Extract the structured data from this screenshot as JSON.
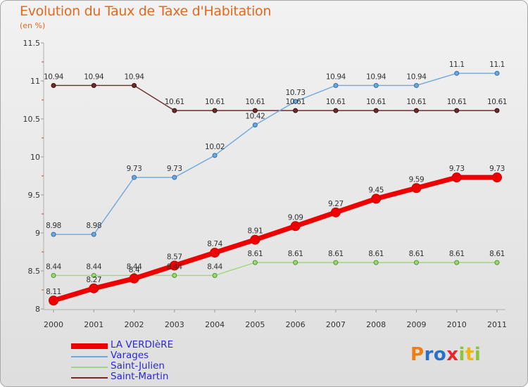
{
  "header": {
    "title": "Evolution du Taux de Taxe d'Habitation",
    "unit": "(en %)"
  },
  "logo": {
    "text": "Proxiti",
    "letter_colors": [
      "#f07d14",
      "#2a6fc8",
      "#2a6fc8",
      "#e8272c",
      "#8cc43c",
      "#f0b414",
      "#8cc43c"
    ]
  },
  "chart_data": {
    "type": "line",
    "x": [
      2000,
      2001,
      2002,
      2003,
      2004,
      2005,
      2006,
      2007,
      2008,
      2009,
      2010,
      2011
    ],
    "ylim": [
      8,
      11.5
    ],
    "yticks": [
      8,
      8.5,
      9,
      9.5,
      10,
      10.5,
      11,
      11.5
    ],
    "ytick_labels": [
      "8",
      "8.5",
      "9",
      "9.5",
      "10",
      "10.5",
      "11",
      "11.5"
    ],
    "grid": false,
    "legend_position": "bottom-left",
    "series": [
      {
        "name": "LA VERDIèRE",
        "color": "#ee0000",
        "values": [
          8.11,
          8.27,
          8.4,
          8.57,
          8.74,
          8.91,
          9.09,
          9.27,
          9.45,
          9.59,
          9.73,
          9.73
        ],
        "labels": [
          "8.11",
          "8.27",
          "8.4",
          "8.57",
          "8.74",
          "8.91",
          "9.09",
          "9.27",
          "9.45",
          "9.59",
          "9.73",
          "9.73"
        ]
      },
      {
        "name": "Varages",
        "color": "#6fa8dc",
        "values": [
          8.98,
          8.98,
          9.73,
          9.73,
          10.02,
          10.42,
          10.73,
          10.94,
          10.94,
          10.94,
          11.1,
          11.1
        ],
        "labels": [
          "8.98",
          "8.98",
          "9.73",
          "9.73",
          "10.02",
          "10.42",
          "10.73",
          "10.94",
          "10.94",
          "10.94",
          "11.1",
          "11.1"
        ]
      },
      {
        "name": "Saint-Julien",
        "color": "#9ed777",
        "values": [
          8.44,
          8.44,
          8.44,
          8.44,
          8.44,
          8.61,
          8.61,
          8.61,
          8.61,
          8.61,
          8.61,
          8.61
        ],
        "labels": [
          "8.44",
          "8.44",
          "8.44",
          "8.44",
          "8.44",
          "8.61",
          "8.61",
          "8.61",
          "8.61",
          "8.61",
          "8.61",
          "8.61"
        ]
      },
      {
        "name": "Saint-Martin",
        "color": "#6b2c2c",
        "values": [
          10.94,
          10.94,
          10.94,
          10.61,
          10.61,
          10.61,
          10.61,
          10.61,
          10.61,
          10.61,
          10.61,
          10.61
        ],
        "labels": [
          "10.94",
          "10.94",
          "10.94",
          "10.61",
          "10.61",
          "10.61",
          "10.61",
          "10.61",
          "10.61",
          "10.61",
          "10.61",
          "10.61"
        ]
      }
    ]
  }
}
